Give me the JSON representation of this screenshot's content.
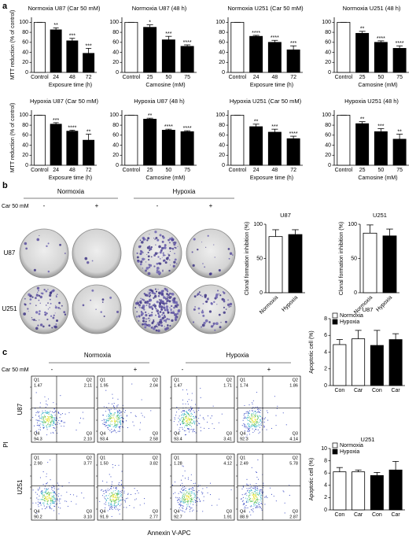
{
  "panel_labels": [
    "a",
    "b",
    "c"
  ],
  "chart_data": [
    {
      "type": "bar",
      "title": "Normoxia U87 (Car 50 mM)",
      "y_label": "MTT reduction (% of control)",
      "x_label": "Exposure time (h)",
      "categories": [
        "Control",
        "24",
        "48",
        "72"
      ],
      "values": [
        100,
        85,
        63,
        38
      ],
      "errors": [
        0,
        4,
        5,
        10
      ],
      "annotations": [
        null,
        "**",
        "***",
        "***"
      ],
      "colors": [
        "#ffffff",
        "#000000",
        "#000000",
        "#000000"
      ],
      "ylim": [
        0,
        110
      ],
      "yticks": [
        0,
        20,
        40,
        60,
        80,
        100
      ]
    },
    {
      "type": "bar",
      "title": "Normoxia U87 (48 h)",
      "x_label": "Carnosine (mM)",
      "categories": [
        "Control",
        "25",
        "50",
        "75"
      ],
      "values": [
        100,
        90,
        65,
        52
      ],
      "errors": [
        0,
        5,
        7,
        3
      ],
      "annotations": [
        null,
        "*",
        "***",
        "****"
      ],
      "colors": [
        "#ffffff",
        "#000000",
        "#000000",
        "#000000"
      ],
      "ylim": [
        0,
        110
      ],
      "yticks": [
        0,
        20,
        40,
        60,
        80,
        100
      ]
    },
    {
      "type": "bar",
      "title": "Normoxia U251 (Car 50 mM)",
      "x_label": "Exposure time (h)",
      "categories": [
        "Control",
        "24",
        "48",
        "72"
      ],
      "values": [
        100,
        72,
        60,
        45
      ],
      "errors": [
        0,
        2,
        4,
        8
      ],
      "annotations": [
        null,
        "****",
        "****",
        "***"
      ],
      "colors": [
        "#ffffff",
        "#000000",
        "#000000",
        "#000000"
      ],
      "ylim": [
        0,
        110
      ],
      "yticks": [
        0,
        20,
        40,
        60,
        80,
        100
      ]
    },
    {
      "type": "bar",
      "title": "Normoxia U251 (48 h)",
      "x_label": "Carnosine (mM)",
      "categories": [
        "Control",
        "25",
        "50",
        "75"
      ],
      "values": [
        100,
        78,
        60,
        48
      ],
      "errors": [
        0,
        4,
        3,
        5
      ],
      "annotations": [
        null,
        "**",
        "****",
        "****"
      ],
      "colors": [
        "#ffffff",
        "#000000",
        "#000000",
        "#000000"
      ],
      "ylim": [
        0,
        110
      ],
      "yticks": [
        0,
        20,
        40,
        60,
        80,
        100
      ]
    },
    {
      "type": "bar",
      "title": "Hypoxia U87 (Car 50 mM)",
      "y_label": "MTT reduction (% of control)",
      "x_label": "Exposure time (h)",
      "categories": [
        "Control",
        "24",
        "48",
        "72"
      ],
      "values": [
        100,
        82,
        68,
        50
      ],
      "errors": [
        0,
        3,
        2,
        12
      ],
      "annotations": [
        null,
        "***",
        "****",
        "**"
      ],
      "colors": [
        "#ffffff",
        "#000000",
        "#000000",
        "#000000"
      ],
      "ylim": [
        0,
        110
      ],
      "yticks": [
        0,
        20,
        40,
        60,
        80,
        100
      ]
    },
    {
      "type": "bar",
      "title": "Hypoxia U87 (48 h)",
      "x_label": "Carnosine (mM)",
      "categories": [
        "Control",
        "25",
        "50",
        "75"
      ],
      "values": [
        100,
        92,
        70,
        67
      ],
      "errors": [
        0,
        2,
        2,
        2
      ],
      "annotations": [
        null,
        "**",
        "****",
        "****"
      ],
      "colors": [
        "#ffffff",
        "#000000",
        "#000000",
        "#000000"
      ],
      "ylim": [
        0,
        110
      ],
      "yticks": [
        0,
        20,
        40,
        60,
        80,
        100
      ]
    },
    {
      "type": "bar",
      "title": "Hypoxia U251 (Car 50 mM)",
      "x_label": "Exposure time (h)",
      "categories": [
        "Control",
        "24",
        "48",
        "72"
      ],
      "values": [
        100,
        77,
        66,
        53
      ],
      "errors": [
        0,
        5,
        6,
        5
      ],
      "annotations": [
        null,
        "**",
        "***",
        "****"
      ],
      "colors": [
        "#ffffff",
        "#000000",
        "#000000",
        "#000000"
      ],
      "ylim": [
        0,
        110
      ],
      "yticks": [
        0,
        20,
        40,
        60,
        80,
        100
      ]
    },
    {
      "type": "bar",
      "title": "Hypoxia U251 (48 h)",
      "x_label": "Carnosine (mM)",
      "categories": [
        "Control",
        "25",
        "50",
        "75"
      ],
      "values": [
        100,
        83,
        67,
        52
      ],
      "errors": [
        0,
        4,
        6,
        10
      ],
      "annotations": [
        null,
        "**",
        "***",
        "**"
      ],
      "colors": [
        "#ffffff",
        "#000000",
        "#000000",
        "#000000"
      ],
      "ylim": [
        0,
        110
      ],
      "yticks": [
        0,
        20,
        40,
        60,
        80,
        100
      ]
    },
    {
      "type": "bar",
      "title": "U87",
      "y_label": "Clonal formation inhibition (%)",
      "categories": [
        "Normoxia",
        "Hypoxia"
      ],
      "values": [
        82,
        85
      ],
      "errors": [
        10,
        7
      ],
      "colors": [
        "#ffffff",
        "#000000"
      ],
      "ylim": [
        0,
        100
      ],
      "yticks": [
        0,
        50,
        100
      ]
    },
    {
      "type": "bar",
      "title": "U251",
      "y_label": "Clonal formation inhibition (%)",
      "categories": [
        "Normoxia",
        "Hypoxia"
      ],
      "values": [
        87,
        83
      ],
      "errors": [
        12,
        10
      ],
      "colors": [
        "#ffffff",
        "#000000"
      ],
      "ylim": [
        0,
        100
      ],
      "yticks": [
        0,
        50,
        100
      ]
    },
    {
      "type": "bar",
      "title": "U87",
      "y_label": "Apoptotic cell (%)",
      "categories": [
        "Con",
        "Car",
        "Con",
        "Car"
      ],
      "values": [
        4.9,
        5.6,
        4.8,
        5.5
      ],
      "errors": [
        0.6,
        1.0,
        1.8,
        0.7
      ],
      "colors": [
        "#ffffff",
        "#ffffff",
        "#000000",
        "#000000"
      ],
      "legend": [
        {
          "name": "Normoxia",
          "color": "#ffffff"
        },
        {
          "name": "Hypoxia",
          "color": "#000000"
        }
      ],
      "ylim": [
        0,
        8
      ],
      "yticks": [
        0,
        2,
        4,
        6,
        8
      ]
    },
    {
      "type": "bar",
      "title": "U251",
      "y_label": "Apoptotic cell (%)",
      "categories": [
        "Con",
        "Car",
        "Con",
        "Car"
      ],
      "values": [
        6.2,
        6.2,
        5.6,
        6.5
      ],
      "errors": [
        0.7,
        0.3,
        0.5,
        1.4
      ],
      "colors": [
        "#ffffff",
        "#ffffff",
        "#000000",
        "#000000"
      ],
      "legend": [
        {
          "name": "Normoxia",
          "color": "#ffffff"
        },
        {
          "name": "Hypoxia",
          "color": "#000000"
        }
      ],
      "ylim": [
        0,
        10
      ],
      "yticks": [
        0,
        2,
        4,
        6,
        8,
        10
      ]
    }
  ],
  "colony": {
    "conditions": [
      "Normoxia",
      "Hypoxia"
    ],
    "treatment_label": "Car 50 mM",
    "signs": [
      "-",
      "+",
      "-",
      "+"
    ],
    "cell_lines": [
      "U87",
      "U251"
    ]
  },
  "flow": {
    "conditions": [
      "Normoxia",
      "Hypoxia"
    ],
    "treatment_label": "Car 50 mM",
    "signs": [
      "-",
      "+",
      "-",
      "+"
    ],
    "cell_lines": [
      "U87",
      "U251"
    ],
    "quadrants": [
      "Q1",
      "Q2",
      "Q3",
      "Q4"
    ],
    "values": [
      [
        [
          "1.47",
          "2.11",
          "2.10",
          "94.3"
        ],
        [
          "1.95",
          "2.04",
          "2.58",
          "93.4"
        ],
        [
          "1.47",
          "1.71",
          "3.41",
          "93.4"
        ],
        [
          "1.74",
          "1.86",
          "4.14",
          "92.3"
        ]
      ],
      [
        [
          "2.90",
          "3.77",
          "3.10",
          "90.2"
        ],
        [
          "1.50",
          "3.82",
          "2.77",
          "91.9"
        ],
        [
          "1.28",
          "4.12",
          "1.91",
          "92.7"
        ],
        [
          "2.49",
          "5.78",
          "2.87",
          "88.9"
        ]
      ]
    ],
    "x_label": "Annexin V-APC",
    "y_label": "PI"
  }
}
